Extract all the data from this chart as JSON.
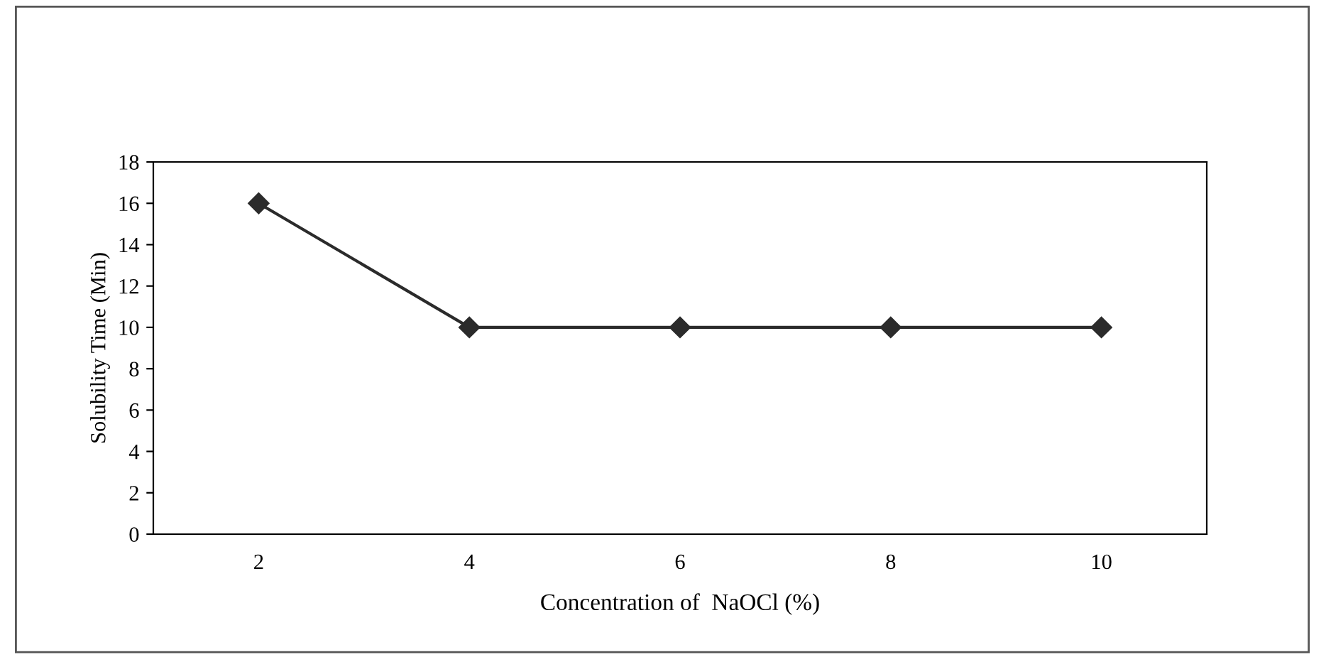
{
  "chart_data": {
    "type": "line",
    "xlabel": "Concentration of  NaOCl (%)",
    "ylabel": "Solubility Time (Min)",
    "categories": [
      "2",
      "4",
      "6",
      "8",
      "10"
    ],
    "series": [
      {
        "color": "#2b2b2b",
        "values": [
          16,
          10,
          10,
          10,
          10
        ]
      }
    ],
    "ylim": [
      0,
      18
    ],
    "yticks": [
      0,
      2,
      4,
      6,
      8,
      10,
      12,
      14,
      16,
      18
    ],
    "grid": false,
    "legend": false,
    "marker": "diamond",
    "line_style": "solid"
  }
}
